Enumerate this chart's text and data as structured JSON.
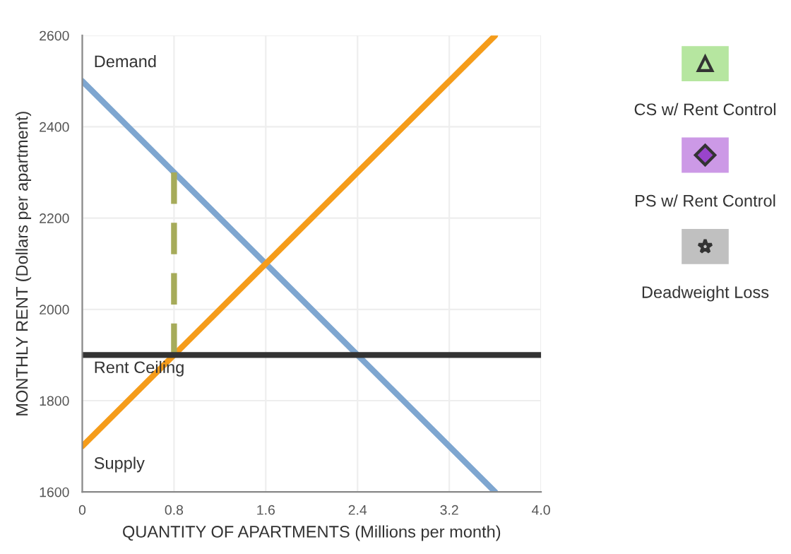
{
  "chart_data": {
    "type": "line",
    "xlabel": "QUANTITY OF APARTMENTS (Millions per month)",
    "ylabel": "MONTHLY RENT (Dollars per apartment)",
    "series": [
      {
        "name": "Demand",
        "color": "#7ea6d0",
        "x": [
          0,
          3.6
        ],
        "values": [
          2500,
          1600
        ]
      },
      {
        "name": "Supply",
        "color": "#f59c1a",
        "x": [
          0,
          3.6
        ],
        "values": [
          1700,
          2600
        ]
      },
      {
        "color": "#a6ab5a",
        "x": [
          0.8,
          0.8
        ],
        "values": [
          1900,
          2300
        ],
        "line_style": "dashed"
      }
    ],
    "ref_lines": [
      {
        "axis": "y",
        "value": 1900,
        "label": "Rent Ceiling",
        "color": "#333333"
      }
    ],
    "xlim": [
      0,
      4.0
    ],
    "xticks": [
      0,
      0.8,
      1.6,
      2.4,
      3.2,
      {
        "value": 4.0,
        "label": "4.0"
      }
    ],
    "ylim": [
      1600,
      2600
    ],
    "yticks": [
      1600,
      1800,
      2000,
      2200,
      2400,
      2600
    ],
    "grid": true,
    "legend": false,
    "annotations": [
      "CS w/ Rent Control",
      "PS w/ Rent Control",
      "Deadweight Loss"
    ]
  }
}
